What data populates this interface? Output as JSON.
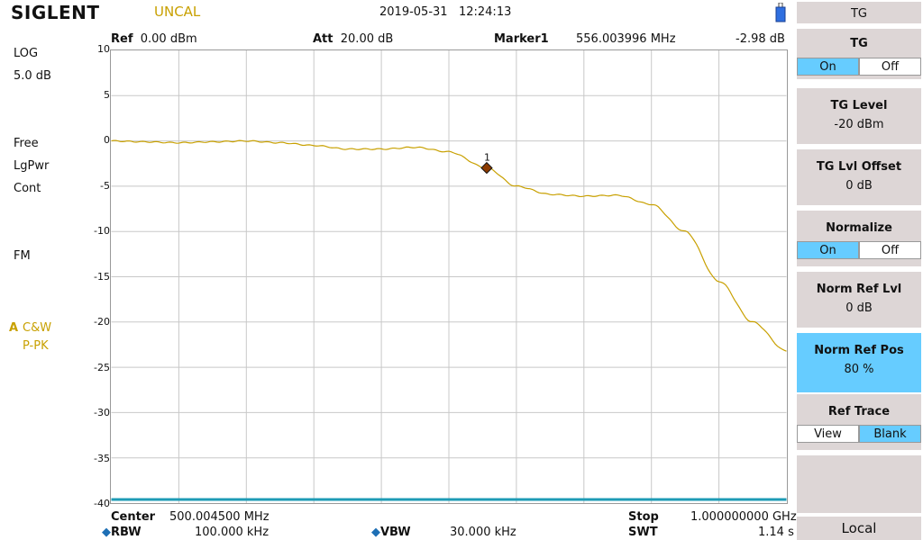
{
  "brand": "SIGLENT",
  "status": {
    "uncal": "UNCAL",
    "date": "2019-05-31",
    "time": "12:24:13"
  },
  "left": {
    "scale_type": "LOG",
    "scale_div": "5.0 dB",
    "trigger": "Free",
    "detector": "LgPwr",
    "sweep": "Cont",
    "demod": "FM",
    "trace_letter": "A",
    "trace_mode": "C&W",
    "trace_detect": "P-PK"
  },
  "header": {
    "ref_label": "Ref",
    "ref_value": "0.00 dBm",
    "att_label": "Att",
    "att_value": "20.00 dB",
    "marker_label": "Marker1",
    "marker_freq": "556.003996 MHz",
    "marker_level": "-2.98 dB"
  },
  "footer": {
    "center_label": "Center",
    "center_value": "500.004500 MHz",
    "stop_label": "Stop",
    "stop_value": "1.000000000 GHz",
    "rbw_label": "RBW",
    "rbw_value": "100.000 kHz",
    "vbw_label": "VBW",
    "vbw_value": "30.000 kHz",
    "swt_label": "SWT",
    "swt_value": "1.14 s"
  },
  "menu": {
    "header": "TG",
    "tg": {
      "title": "TG",
      "on": "On",
      "off": "Off",
      "state": "On"
    },
    "tg_level": {
      "title": "TG Level",
      "value": "-20 dBm"
    },
    "tg_lvl_offset": {
      "title": "TG Lvl Offset",
      "value": "0 dB"
    },
    "normalize": {
      "title": "Normalize",
      "on": "On",
      "off": "Off",
      "state": "On"
    },
    "norm_ref_lvl": {
      "title": "Norm Ref Lvl",
      "value": "0 dB"
    },
    "norm_ref_pos": {
      "title": "Norm Ref Pos",
      "value": "80 %"
    },
    "ref_trace": {
      "title": "Ref Trace",
      "view": "View",
      "blank": "Blank",
      "state": "Blank"
    },
    "local": "Local"
  },
  "colors": {
    "trace": "#c8a000",
    "marker": "#8b3a00",
    "selected": "#66ccff",
    "softkey_bg": "#ddd6d6"
  },
  "chart_data": {
    "type": "line",
    "x_unit": "MHz",
    "xlim": [
      1000,
      1000000000
    ],
    "ylim": [
      -40,
      10
    ],
    "yticks": [
      10,
      5,
      0,
      -5,
      -10,
      -15,
      -20,
      -25,
      -30,
      -35,
      -40
    ],
    "series": [
      {
        "x": [
          1000,
          50000000,
          100000000,
          150000000,
          200000000,
          250000000,
          300000000,
          350000000,
          400000000,
          450000000,
          500000000,
          556000000,
          600000000,
          650000000,
          700000000,
          750000000,
          800000000,
          850000000,
          900000000,
          950000000,
          1000000000
        ],
        "y": [
          0.0,
          -0.1,
          -0.2,
          -0.1,
          0.0,
          -0.2,
          -0.5,
          -0.9,
          -0.9,
          -0.7,
          -1.2,
          -2.98,
          -5.0,
          -5.9,
          -6.1,
          -6.0,
          -7.0,
          -10.0,
          -15.5,
          -20.0,
          -23.2
        ]
      }
    ],
    "marker": {
      "label": "1",
      "x": 556003996,
      "y": -2.98
    },
    "grid": true
  }
}
